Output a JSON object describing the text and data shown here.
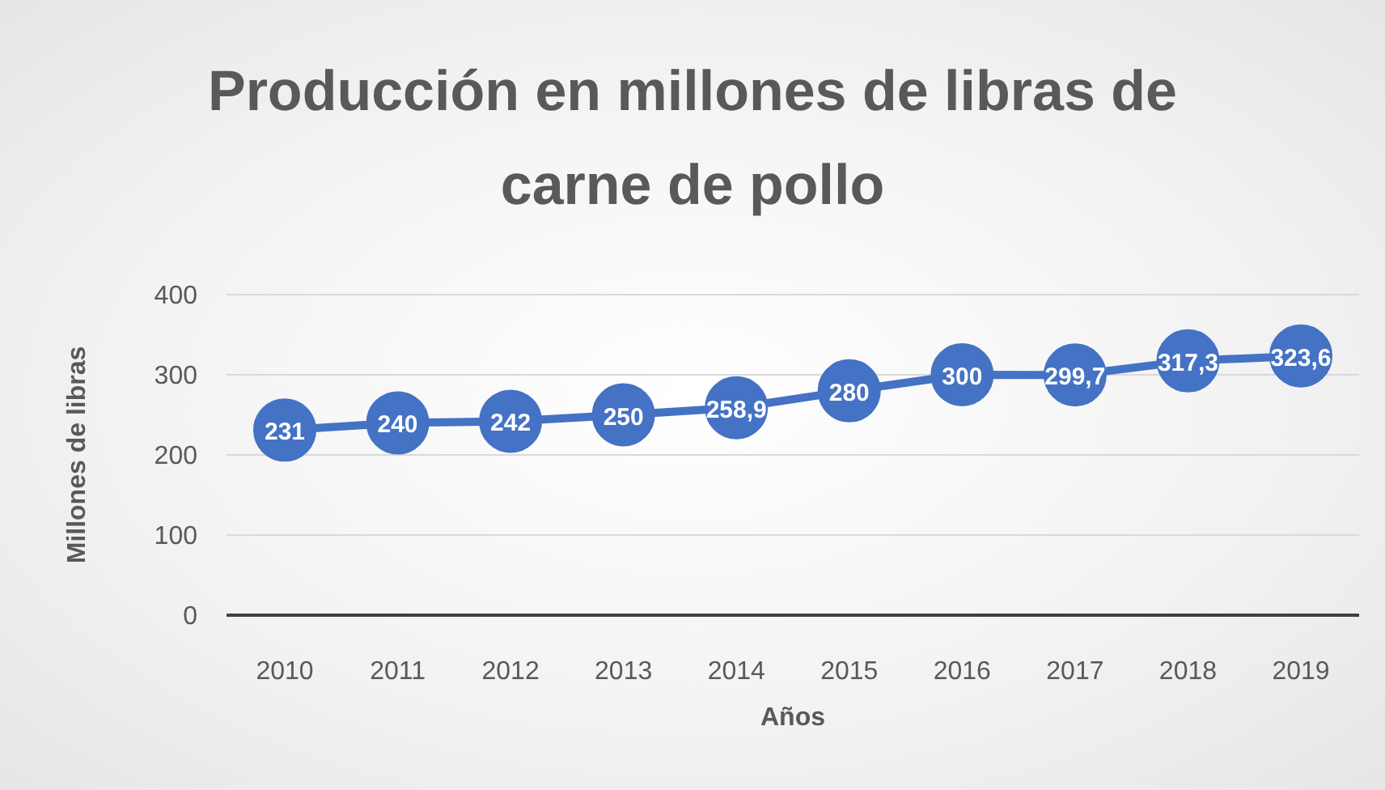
{
  "chart_data": {
    "type": "line",
    "title": "Producción en millones de libras de carne de pollo",
    "xlabel": "Años",
    "ylabel": "Millones de libras",
    "categories": [
      "2010",
      "2011",
      "2012",
      "2013",
      "2014",
      "2015",
      "2016",
      "2017",
      "2018",
      "2019"
    ],
    "series": [
      {
        "color": "#4472c4",
        "values": [
          231,
          240,
          242,
          250,
          258.9,
          280,
          300,
          299.7,
          317.3,
          323.6
        ],
        "value_labels": [
          "231",
          "240",
          "242",
          "250",
          "258,9",
          "280",
          "300",
          "299,7",
          "317,3",
          "323,6"
        ]
      }
    ],
    "ylim": [
      0,
      400
    ],
    "yticks": [
      0,
      100,
      200,
      300,
      400
    ],
    "grid": "y",
    "marker": "circle",
    "line_style": "solid",
    "legend": false
  }
}
